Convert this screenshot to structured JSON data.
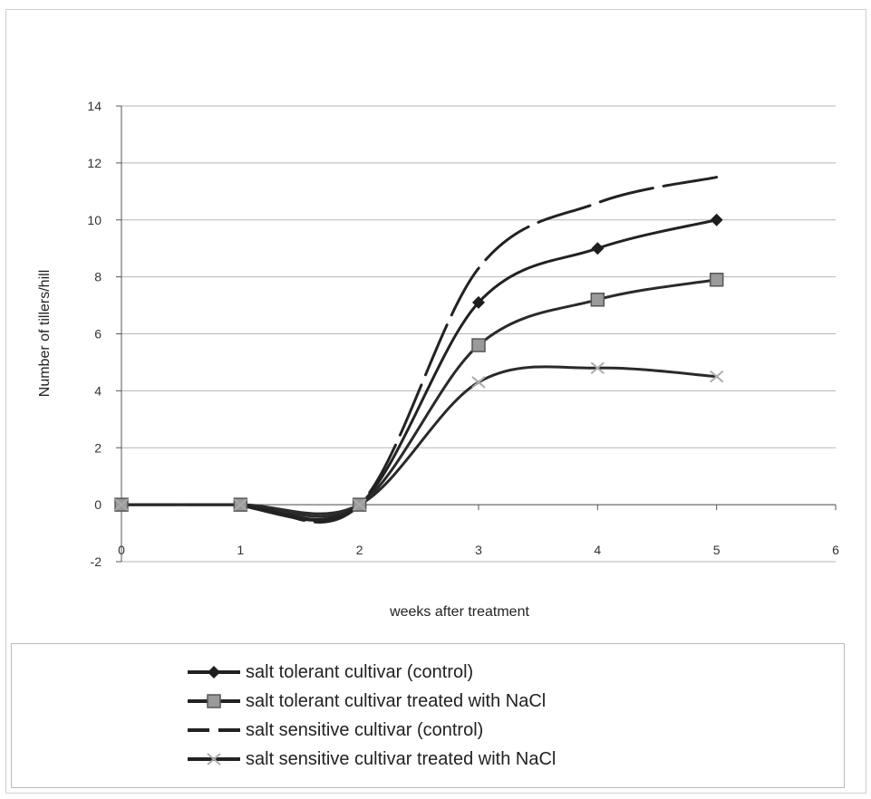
{
  "chart_data": {
    "type": "line",
    "title": "",
    "xlabel": "weeks after treatment",
    "ylabel": "Number of tillers/hill",
    "xlim": [
      0,
      6
    ],
    "ylim": [
      -2,
      14
    ],
    "x_ticks": [
      "0",
      "1",
      "2",
      "3",
      "4",
      "5",
      "6"
    ],
    "y_ticks": [
      "-2",
      "0",
      "2",
      "4",
      "6",
      "8",
      "10",
      "12",
      "14"
    ],
    "grid": "horizontal",
    "legend_position": "bottom",
    "x": [
      0,
      1,
      2,
      3,
      4,
      5
    ],
    "series": [
      {
        "name": "salt tolerant cultivar (control)",
        "values": [
          0,
          0,
          0,
          7.1,
          9.0,
          10.0
        ],
        "color": "#222222",
        "marker": "diamond",
        "line": "solid"
      },
      {
        "name": "salt tolerant cultivar treated with NaCl",
        "values": [
          0,
          0,
          0,
          5.6,
          7.2,
          7.9
        ],
        "color": "#2a2a2a",
        "marker": "square",
        "line": "solid"
      },
      {
        "name": "salt sensitive cultivar (control)",
        "values": [
          0,
          0,
          0,
          8.3,
          10.6,
          11.5
        ],
        "color": "#222222",
        "marker": "none",
        "line": "dashed"
      },
      {
        "name": "salt sensitive cultivar treated with NaCl",
        "values": [
          0,
          0,
          0,
          4.3,
          4.8,
          4.5
        ],
        "color": "#2a2a2a",
        "marker": "x",
        "line": "solid"
      }
    ]
  }
}
